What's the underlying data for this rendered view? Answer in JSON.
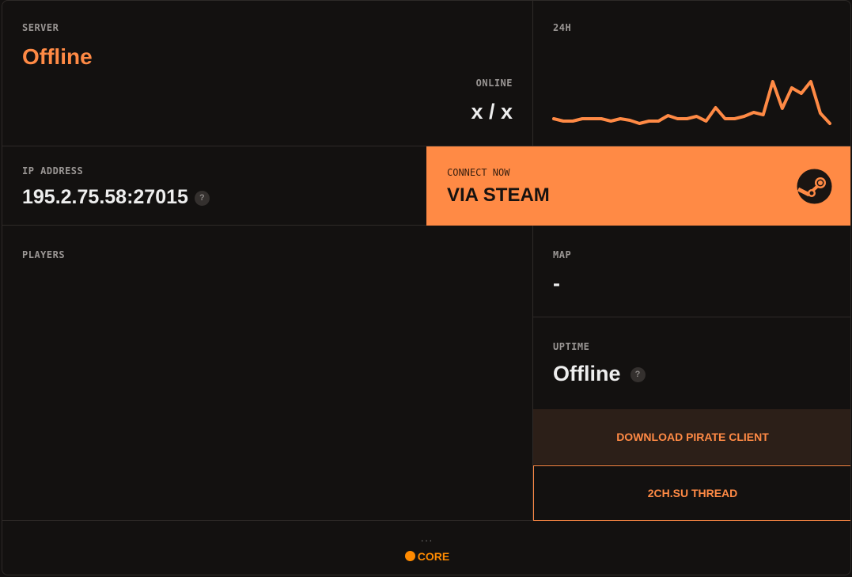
{
  "server": {
    "label": "SERVER",
    "status": "Offline"
  },
  "online": {
    "label": "ONLINE",
    "value": "x / x"
  },
  "history": {
    "label": "24H"
  },
  "ip": {
    "label": "IP ADDRESS",
    "value": "195.2.75.58:27015",
    "help": "?"
  },
  "connect": {
    "label": "CONNECT NOW",
    "value": "VIA STEAM",
    "icon": "steam-icon"
  },
  "players": {
    "label": "PLAYERS"
  },
  "map": {
    "label": "MAP",
    "value": "-"
  },
  "uptime": {
    "label": "UPTIME",
    "value": "Offline",
    "help": "?"
  },
  "buttons": {
    "download": "DOWNLOAD PIRATE CLIENT",
    "thread": "2CH.SU THREAD"
  },
  "footer": {
    "dots": "...",
    "brand": "CORE"
  },
  "colors": {
    "accent": "#ff8a45",
    "background": "#131110",
    "download_bg": "#2c1f18"
  },
  "chart_data": {
    "type": "line",
    "title": "24H",
    "values": [
      11,
      8,
      8,
      11,
      11,
      11,
      8,
      11,
      9,
      5,
      8,
      8,
      15,
      11,
      11,
      14,
      8,
      25,
      11,
      11,
      14,
      19,
      16,
      58,
      24,
      50,
      43,
      58,
      18,
      5
    ]
  }
}
